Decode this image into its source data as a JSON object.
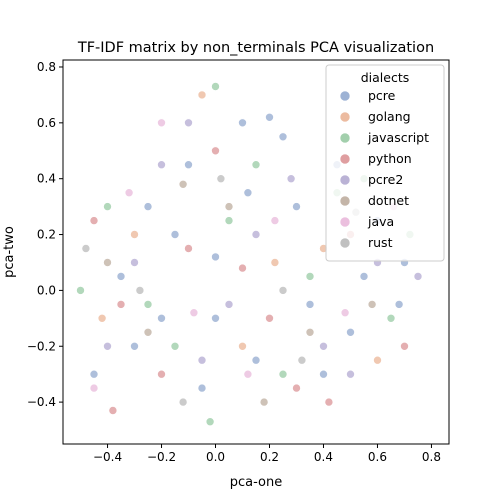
{
  "chart_data": {
    "type": "scatter",
    "title": "TF-IDF matrix by non_terminals PCA visualization",
    "xlabel": "pca-one",
    "ylabel": "pca-two",
    "xlim": [
      -0.565,
      0.865
    ],
    "ylim": [
      -0.55,
      0.825
    ],
    "x_ticks": [
      -0.4,
      -0.2,
      0.0,
      0.2,
      0.4,
      0.6,
      0.8
    ],
    "x_tick_labels": [
      "−0.4",
      "−0.2",
      "0.0",
      "0.2",
      "0.4",
      "0.6",
      "0.8"
    ],
    "y_ticks": [
      -0.4,
      -0.2,
      0.0,
      0.2,
      0.4,
      0.6,
      0.8
    ],
    "y_tick_labels": [
      "−0.4",
      "−0.2",
      "0.0",
      "0.2",
      "0.4",
      "0.6",
      "0.8"
    ],
    "grid": false,
    "legend": {
      "title": "dialects",
      "placement": "top-right"
    },
    "point_alpha": 0.45,
    "series": [
      {
        "name": "pcre",
        "color": "#4c72b0",
        "points": [
          [
            -0.35,
            0.05
          ],
          [
            -0.2,
            -0.1
          ],
          [
            0.0,
            0.12
          ],
          [
            0.15,
            -0.25
          ],
          [
            0.3,
            0.3
          ],
          [
            0.55,
            0.05
          ],
          [
            -0.1,
            0.45
          ],
          [
            0.4,
            -0.3
          ],
          [
            0.7,
            0.1
          ],
          [
            -0.45,
            -0.3
          ],
          [
            0.1,
            0.6
          ],
          [
            -0.25,
            0.3
          ],
          [
            0.25,
            0.55
          ],
          [
            0.6,
            0.25
          ],
          [
            -0.05,
            -0.35
          ],
          [
            0.45,
            0.45
          ],
          [
            0.2,
            0.62
          ],
          [
            -0.15,
            0.2
          ],
          [
            0.35,
            -0.05
          ],
          [
            0.5,
            -0.15
          ],
          [
            0.0,
            -0.1
          ],
          [
            -0.3,
            -0.2
          ],
          [
            0.12,
            0.35
          ],
          [
            0.68,
            -0.05
          ]
        ]
      },
      {
        "name": "golang",
        "color": "#dd8452",
        "points": [
          [
            -0.3,
            0.2
          ],
          [
            0.1,
            -0.2
          ],
          [
            0.4,
            0.15
          ],
          [
            -0.05,
            0.7
          ],
          [
            0.6,
            -0.25
          ],
          [
            0.22,
            0.1
          ],
          [
            -0.42,
            -0.1
          ]
        ]
      },
      {
        "name": "javascript",
        "color": "#55a868",
        "points": [
          [
            -0.4,
            0.3
          ],
          [
            -0.15,
            -0.2
          ],
          [
            0.05,
            0.25
          ],
          [
            0.25,
            -0.3
          ],
          [
            0.45,
            0.35
          ],
          [
            0.65,
            -0.1
          ],
          [
            0.0,
            0.73
          ],
          [
            -0.25,
            -0.05
          ],
          [
            0.35,
            0.05
          ],
          [
            0.15,
            0.45
          ],
          [
            -0.5,
            0.0
          ],
          [
            0.55,
            0.4
          ],
          [
            -0.02,
            -0.47
          ],
          [
            0.72,
            0.2
          ]
        ]
      },
      {
        "name": "python",
        "color": "#c44e52",
        "points": [
          [
            -0.35,
            -0.05
          ],
          [
            -0.1,
            0.15
          ],
          [
            0.2,
            -0.1
          ],
          [
            0.5,
            0.2
          ],
          [
            -0.45,
            0.25
          ],
          [
            0.3,
            -0.35
          ],
          [
            0.0,
            0.5
          ],
          [
            -0.2,
            -0.3
          ],
          [
            0.7,
            -0.2
          ],
          [
            -0.38,
            -0.43
          ],
          [
            0.42,
            -0.4
          ],
          [
            0.1,
            0.08
          ]
        ]
      },
      {
        "name": "pcre2",
        "color": "#8172b3",
        "points": [
          [
            -0.3,
            0.1
          ],
          [
            -0.05,
            -0.25
          ],
          [
            0.15,
            0.2
          ],
          [
            0.4,
            -0.2
          ],
          [
            0.6,
            0.1
          ],
          [
            -0.2,
            0.45
          ],
          [
            0.28,
            0.4
          ],
          [
            -0.4,
            -0.2
          ],
          [
            0.05,
            -0.05
          ],
          [
            0.75,
            0.05
          ],
          [
            0.5,
            -0.3
          ],
          [
            -0.1,
            0.6
          ]
        ]
      },
      {
        "name": "dotnet",
        "color": "#937860",
        "points": [
          [
            -0.25,
            -0.15
          ],
          [
            0.05,
            0.3
          ],
          [
            0.35,
            -0.15
          ],
          [
            -0.4,
            0.1
          ],
          [
            0.58,
            -0.05
          ],
          [
            0.18,
            -0.4
          ],
          [
            -0.12,
            0.38
          ]
        ]
      },
      {
        "name": "java",
        "color": "#da8bc3",
        "points": [
          [
            -0.32,
            0.35
          ],
          [
            -0.08,
            -0.08
          ],
          [
            0.22,
            0.25
          ],
          [
            0.48,
            -0.08
          ],
          [
            -0.45,
            -0.35
          ],
          [
            0.12,
            -0.3
          ],
          [
            -0.2,
            0.6
          ],
          [
            0.66,
            0.3
          ]
        ]
      },
      {
        "name": "rust",
        "color": "#8c8c8c",
        "points": [
          [
            -0.28,
            0.0
          ],
          [
            0.02,
            0.4
          ],
          [
            0.32,
            -0.25
          ],
          [
            0.52,
            0.28
          ],
          [
            -0.12,
            -0.4
          ],
          [
            -0.48,
            0.15
          ],
          [
            0.25,
            0.0
          ]
        ]
      }
    ]
  }
}
